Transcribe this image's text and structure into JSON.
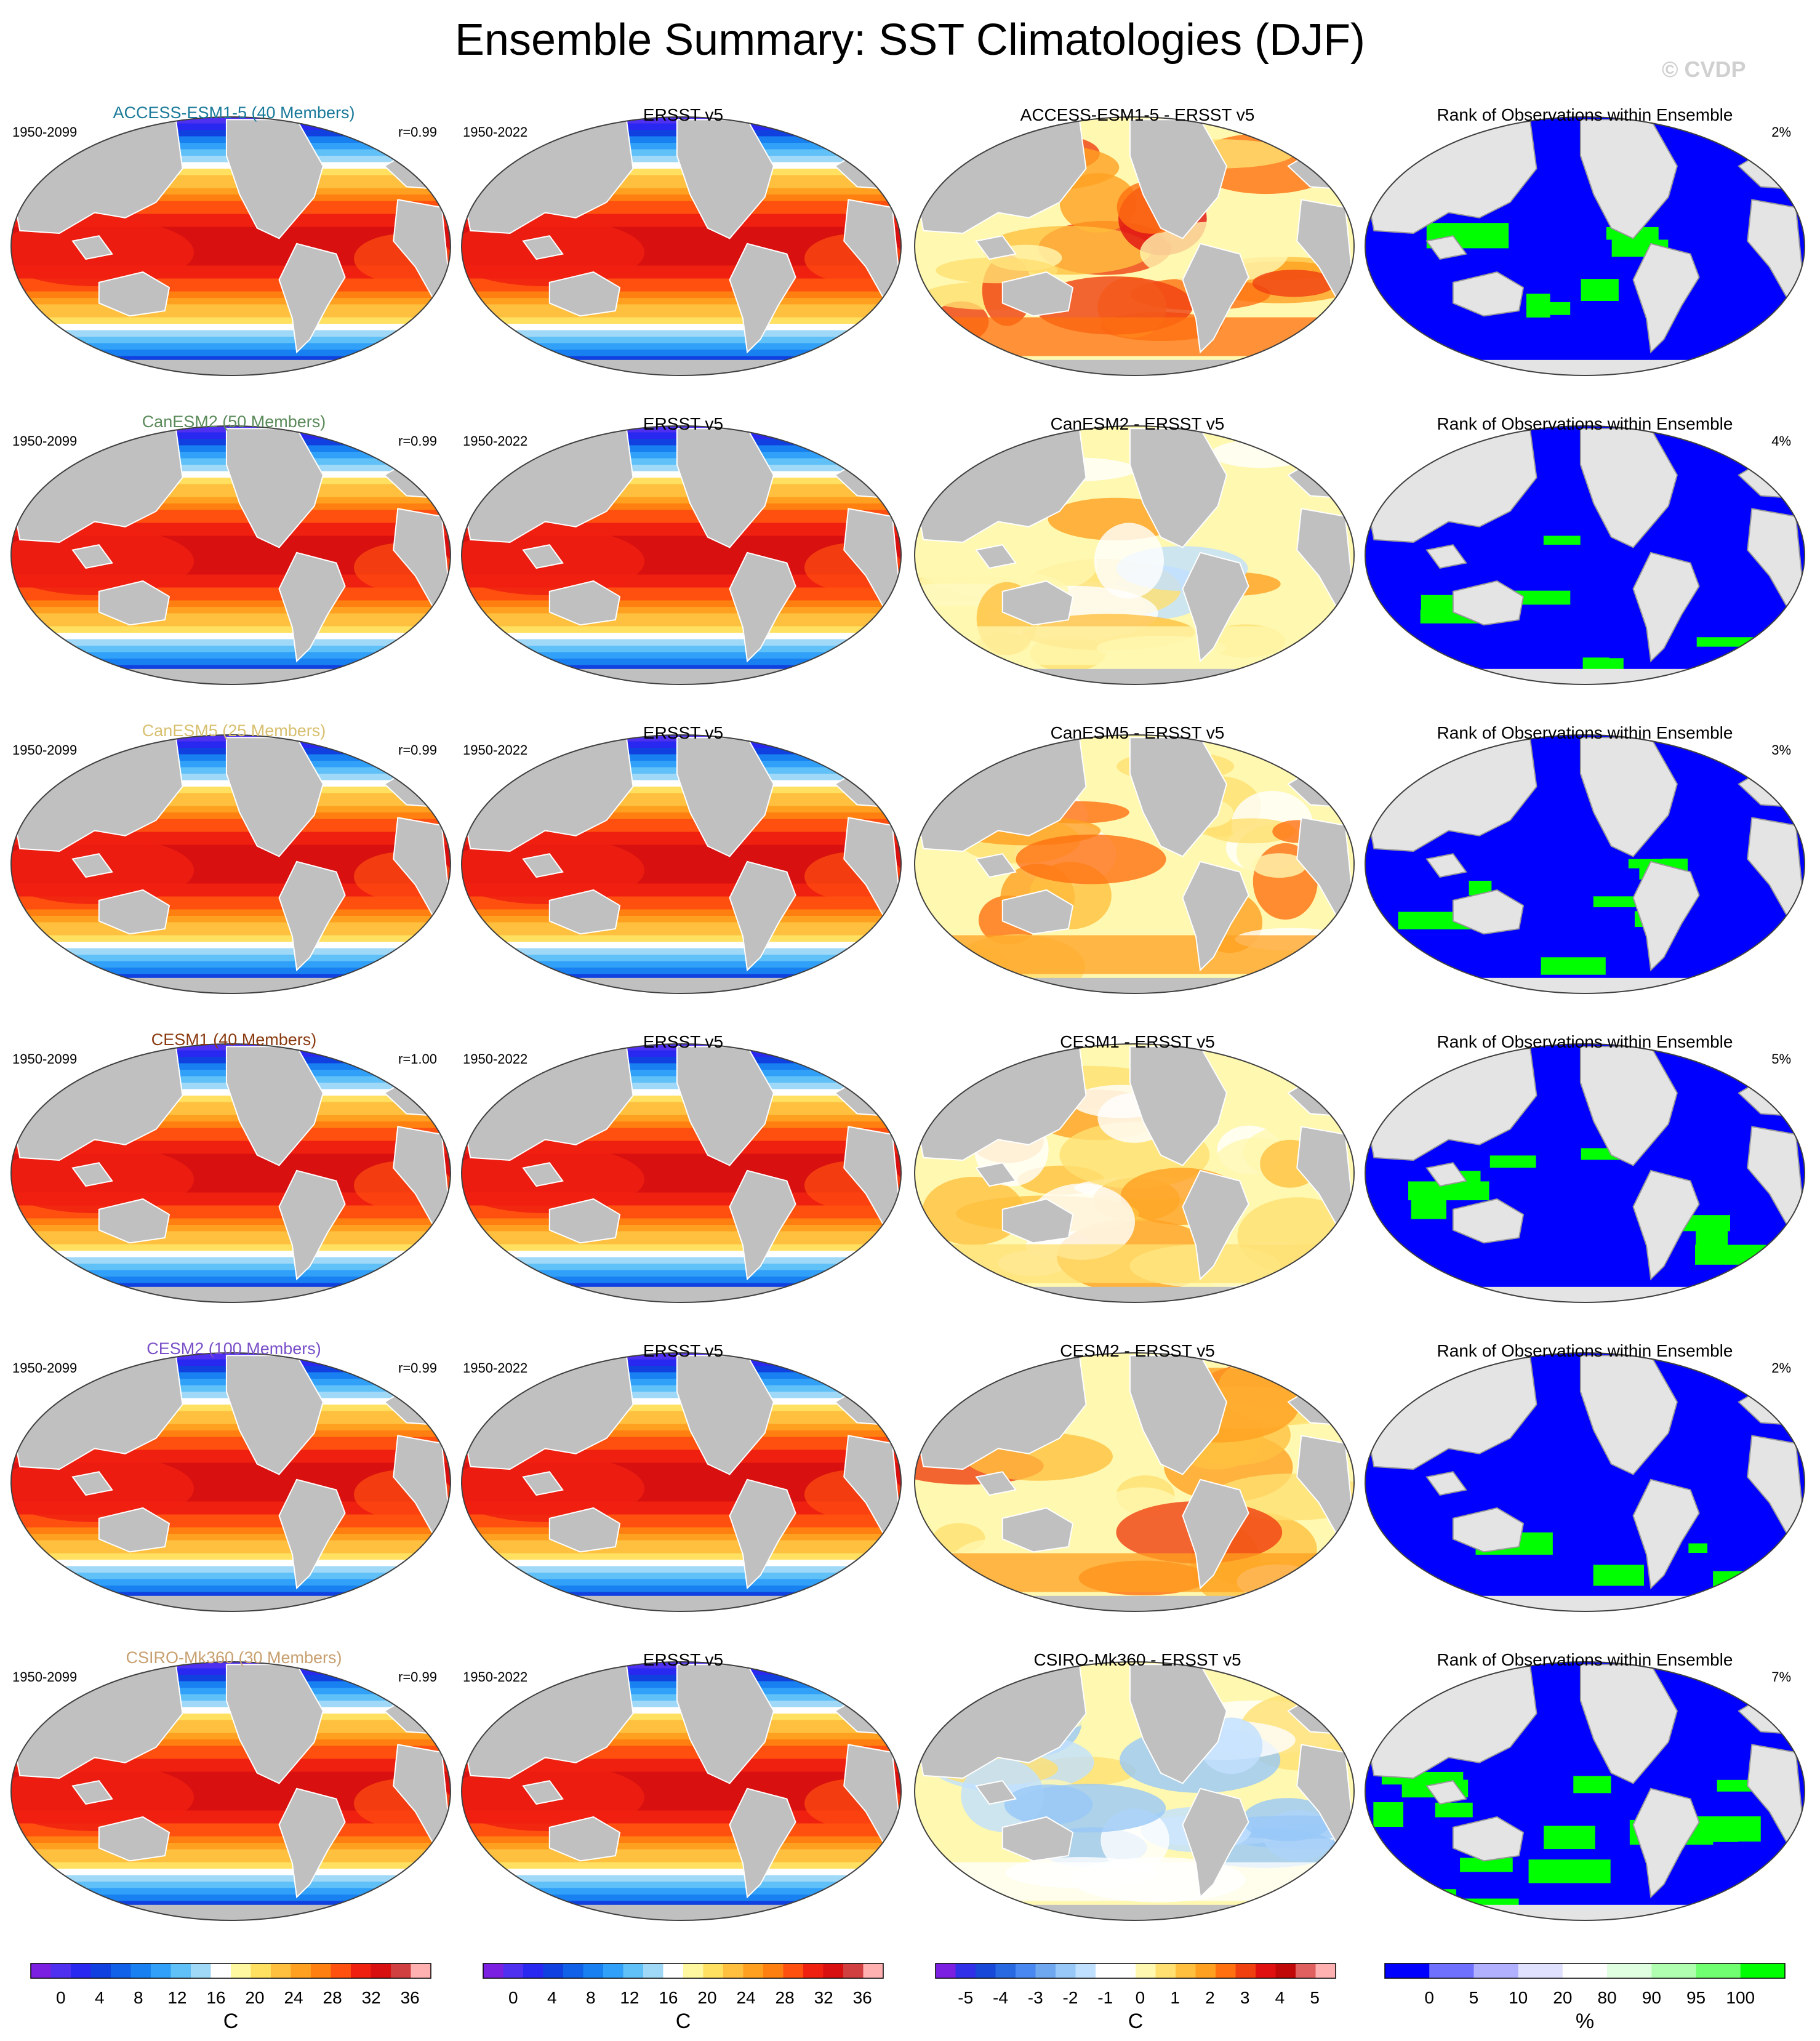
{
  "title": "Ensemble Summary: SST Climatologies (DJF)",
  "watermark": "© CVDP",
  "rows": [
    {
      "model": "ACCESS-ESM1-5 (40 Members)",
      "model_color": "#1a7a9a",
      "model_years": "1950-2099",
      "corr": "r=0.99",
      "obs": "ERSST v5",
      "obs_years": "1950-2022",
      "diff_title": "ACCESS-ESM1-5 - ERSST v5",
      "rank_title": "Rank of Observations within Ensemble",
      "rank_pct": "2%",
      "diff_bias": 1.6,
      "rank_green": 0.05
    },
    {
      "model": "CanESM2 (50 Members)",
      "model_color": "#5a8a5a",
      "model_years": "1950-2099",
      "corr": "r=0.99",
      "obs": "ERSST v5",
      "obs_years": "1950-2022",
      "diff_title": "CanESM2 - ERSST v5",
      "rank_title": "Rank of Observations within Ensemble",
      "rank_pct": "4%",
      "diff_bias": 0.2,
      "rank_green": 0.18
    },
    {
      "model": "CanESM5 (25 Members)",
      "model_color": "#d8c070",
      "model_years": "1950-2099",
      "corr": "r=0.99",
      "obs": "ERSST v5",
      "obs_years": "1950-2022",
      "diff_title": "CanESM5 - ERSST v5",
      "rank_title": "Rank of Observations within Ensemble",
      "rank_pct": "3%",
      "diff_bias": 1.0,
      "rank_green": 0.15
    },
    {
      "model": "CESM1 (40 Members)",
      "model_color": "#8a3a10",
      "model_years": "1950-2099",
      "corr": "r=1.00",
      "obs": "ERSST v5",
      "obs_years": "1950-2022",
      "diff_title": "CESM1 - ERSST v5",
      "rank_title": "Rank of Observations within Ensemble",
      "rank_pct": "5%",
      "diff_bias": 0.5,
      "rank_green": 0.17
    },
    {
      "model": "CESM2 (100 Members)",
      "model_color": "#7a50c8",
      "model_years": "1950-2099",
      "corr": "r=0.99",
      "obs": "ERSST v5",
      "obs_years": "1950-2022",
      "diff_title": "CESM2 - ERSST v5",
      "rank_title": "Rank of Observations within Ensemble",
      "rank_pct": "2%",
      "diff_bias": 1.2,
      "rank_green": 0.08
    },
    {
      "model": "CSIRO-Mk360 (30 Members)",
      "model_color": "#c8a070",
      "model_years": "1950-2099",
      "corr": "r=0.99",
      "obs": "ERSST v5",
      "obs_years": "1950-2022",
      "diff_title": "CSIRO-Mk360 - ERSST v5",
      "rank_title": "Rank of Observations within Ensemble",
      "rank_pct": "7%",
      "diff_bias": -0.4,
      "rank_green": 0.42
    }
  ],
  "colorbars": [
    {
      "unit": "C",
      "ticks": [
        "0",
        "4",
        "8",
        "12",
        "16",
        "20",
        "24",
        "28",
        "32",
        "36"
      ],
      "colors": [
        "#7b20e0",
        "#5030f0",
        "#2828f0",
        "#1040e0",
        "#1060e8",
        "#1880f0",
        "#30a0f8",
        "#60c0f8",
        "#a0d8f8",
        "#ffffff",
        "#fff8a0",
        "#ffe060",
        "#ffc040",
        "#ffa020",
        "#ff8010",
        "#ff5010",
        "#f02010",
        "#d81010",
        "#d04040",
        "#ffb0b0"
      ]
    },
    {
      "unit": "C",
      "ticks": [
        "0",
        "4",
        "8",
        "12",
        "16",
        "20",
        "24",
        "28",
        "32",
        "36"
      ],
      "colors": [
        "#7b20e0",
        "#5030f0",
        "#2828f0",
        "#1040e0",
        "#1060e8",
        "#1880f0",
        "#30a0f8",
        "#60c0f8",
        "#a0d8f8",
        "#ffffff",
        "#fff8a0",
        "#ffe060",
        "#ffc040",
        "#ffa020",
        "#ff8010",
        "#ff5010",
        "#f02010",
        "#d81010",
        "#d04040",
        "#ffb0b0"
      ]
    },
    {
      "unit": "C",
      "ticks": [
        "-5",
        "-4",
        "-3",
        "-2",
        "-1",
        "0",
        "1",
        "2",
        "3",
        "4",
        "5"
      ],
      "colors": [
        "#7b20e0",
        "#3030e8",
        "#1848d8",
        "#2868e0",
        "#4888f0",
        "#70a8f0",
        "#98c8f8",
        "#c0e0ff",
        "#ffffff",
        "#ffffff",
        "#fff8b0",
        "#ffe070",
        "#ffc040",
        "#ffa020",
        "#ff7010",
        "#f04010",
        "#e01010",
        "#c00808",
        "#e06060",
        "#ffb0b0"
      ]
    },
    {
      "unit": "%",
      "ticks": [
        "0",
        "5",
        "10",
        "20",
        "80",
        "90",
        "95",
        "100"
      ],
      "colors": [
        "#0000ff",
        "#7070ff",
        "#b0b0ff",
        "#e0e0ff",
        "#ffffff",
        "#e0ffe0",
        "#b0ffb0",
        "#70ff70",
        "#00ff00"
      ]
    }
  ]
}
